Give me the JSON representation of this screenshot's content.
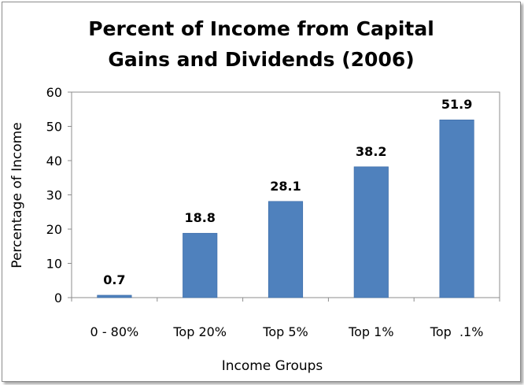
{
  "chart_data": {
    "type": "bar",
    "title_lines": [
      "Percent of Income from Capital",
      "Gains and Dividends (2006)"
    ],
    "xlabel": "Income Groups",
    "ylabel": "Percentage of Income",
    "categories": [
      "0 - 80%",
      "Top 20%",
      "Top 5%",
      "Top 1%",
      "Top  .1%"
    ],
    "values": [
      0.7,
      18.8,
      28.1,
      38.2,
      51.9
    ],
    "data_labels": [
      "0.7",
      "18.8",
      "28.1",
      "38.2",
      "51.9"
    ],
    "ylim": [
      0,
      60
    ],
    "yticks": [
      0,
      10,
      20,
      30,
      40,
      50,
      60
    ],
    "grid": false,
    "legend": "none",
    "bar_color": "#4f81bd"
  }
}
